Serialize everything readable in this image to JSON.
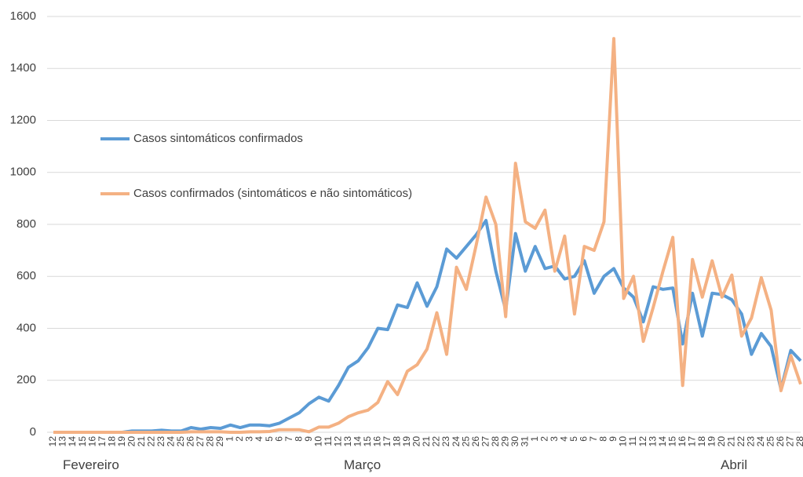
{
  "chart_data": {
    "type": "line",
    "categories": [
      "12",
      "13",
      "14",
      "15",
      "16",
      "17",
      "18",
      "19",
      "20",
      "21",
      "22",
      "23",
      "24",
      "25",
      "26",
      "27",
      "28",
      "29",
      "1",
      "2",
      "3",
      "4",
      "5",
      "6",
      "7",
      "8",
      "9",
      "10",
      "11",
      "12",
      "13",
      "14",
      "15",
      "16",
      "17",
      "18",
      "19",
      "20",
      "21",
      "22",
      "23",
      "24",
      "25",
      "26",
      "27",
      "28",
      "29",
      "30",
      "31",
      "1",
      "2",
      "3",
      "4",
      "5",
      "6",
      "7",
      "8",
      "9",
      "10",
      "11",
      "12",
      "13",
      "14",
      "15",
      "16",
      "17",
      "18",
      "19",
      "20",
      "21",
      "22",
      "23",
      "24",
      "25",
      "26",
      "27",
      "28"
    ],
    "x_groups": [
      "Fevereiro",
      "Março",
      "Abril"
    ],
    "series": [
      {
        "name": "Casos sintomáticos confirmados",
        "color": "#5b9bd5",
        "values": [
          0,
          0,
          0,
          0,
          0,
          0,
          0,
          0,
          5,
          5,
          5,
          8,
          5,
          5,
          18,
          12,
          18,
          15,
          28,
          18,
          28,
          28,
          25,
          35,
          55,
          75,
          110,
          135,
          120,
          180,
          250,
          275,
          325,
          400,
          395,
          490,
          480,
          575,
          485,
          560,
          705,
          670,
          715,
          760,
          815,
          620,
          470,
          765,
          620,
          715,
          630,
          640,
          590,
          600,
          660,
          535,
          600,
          630,
          555,
          520,
          425,
          560,
          550,
          555,
          340,
          535,
          370,
          535,
          530,
          510,
          455,
          300,
          380,
          330,
          165,
          315,
          275
        ]
      },
      {
        "name": "Casos confirmados (sintomáticos e não sintomáticos)",
        "color": "#f4b183",
        "values": [
          0,
          0,
          0,
          0,
          0,
          0,
          0,
          0,
          0,
          0,
          0,
          0,
          0,
          0,
          2,
          2,
          2,
          2,
          0,
          0,
          2,
          2,
          3,
          10,
          10,
          10,
          2,
          20,
          20,
          35,
          60,
          75,
          85,
          115,
          195,
          145,
          235,
          260,
          320,
          460,
          300,
          635,
          550,
          720,
          905,
          800,
          445,
          1035,
          810,
          785,
          855,
          620,
          755,
          455,
          715,
          700,
          810,
          1515,
          515,
          600,
          350,
          480,
          620,
          750,
          180,
          665,
          520,
          660,
          520,
          605,
          370,
          440,
          595,
          470,
          160,
          295,
          185
        ]
      }
    ],
    "ylim": [
      0,
      1600
    ],
    "yticks": [
      0,
      200,
      400,
      600,
      800,
      1000,
      1200,
      1400,
      1600
    ],
    "grid": true
  }
}
